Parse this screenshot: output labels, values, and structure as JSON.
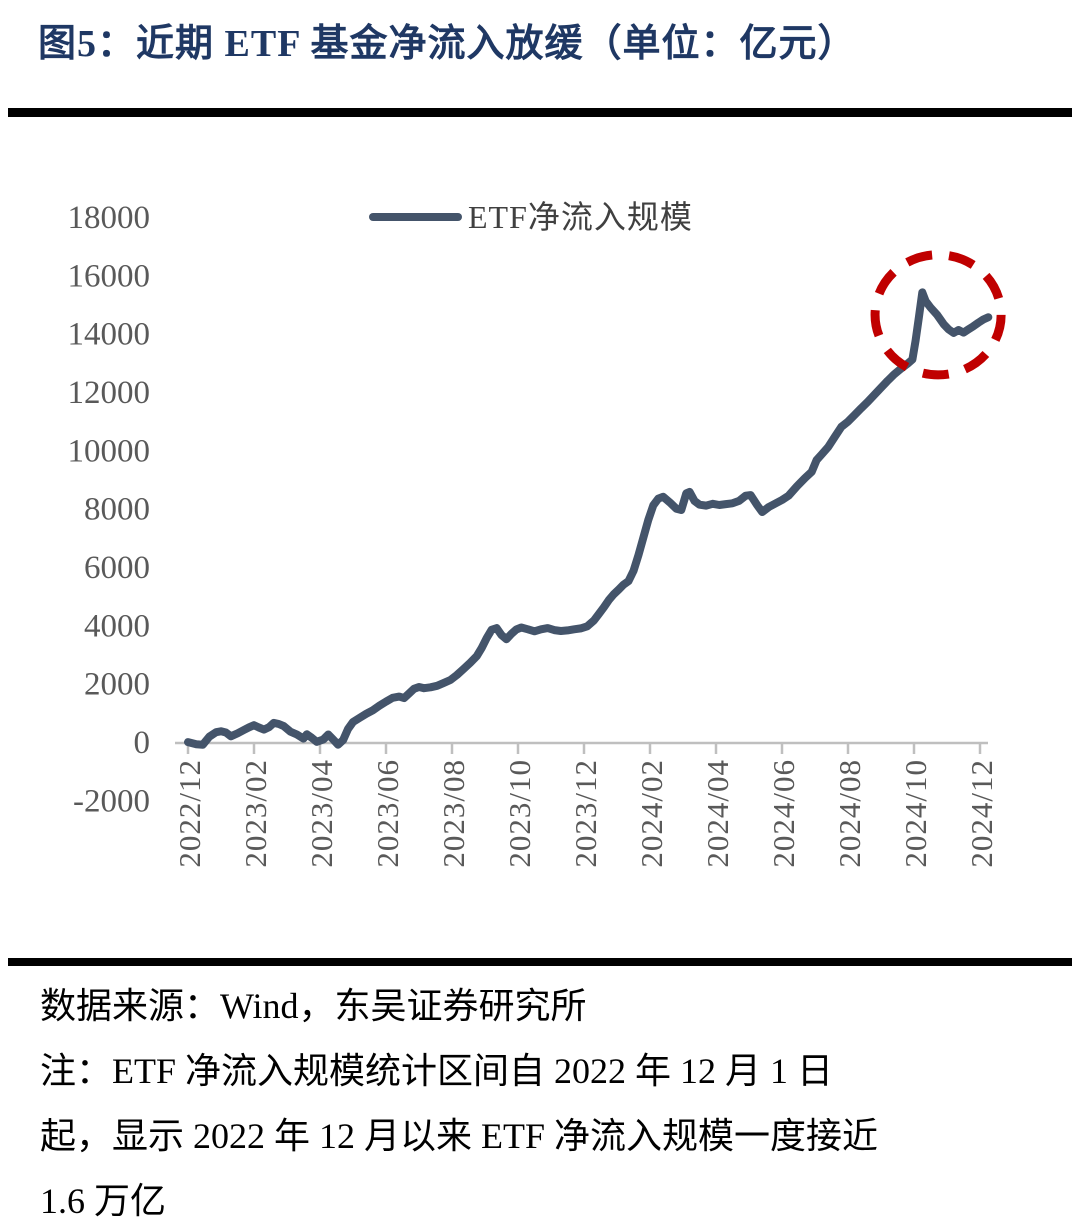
{
  "figure": {
    "title": "图5：近期 ETF 基金净流入放缓（单位：亿元）",
    "notes": [
      "数据来源：Wind，东吴证券研究所",
      "注：ETF 净流入规模统计区间自 2022 年 12 月 1 日",
      "起，显示 2022 年 12 月以来 ETF 净流入规模一度接近",
      "1.6 万亿"
    ]
  },
  "colors": {
    "title": "#1F3864",
    "line": "#44546A",
    "annotation_red": "#C00000",
    "axis_text": "#595959",
    "legend_text": "#404040",
    "axis_line": "#BFBFBF",
    "rule": "#000000",
    "note_text": "#000000"
  },
  "chart_data": {
    "type": "line",
    "title": "图5：近期 ETF 基金净流入放缓",
    "unit": "亿元",
    "grid": false,
    "legend_position": "top-center",
    "x_tick_labels": [
      "2022/12",
      "2023/02",
      "2023/04",
      "2023/06",
      "2023/08",
      "2023/10",
      "2023/12",
      "2024/02",
      "2024/04",
      "2024/06",
      "2024/08",
      "2024/10",
      "2024/12"
    ],
    "x_months_per_tick": 2,
    "xlim_months": [
      0,
      24.3
    ],
    "ylim": [
      -2000,
      18000
    ],
    "y_ticks": [
      -2000,
      0,
      2000,
      4000,
      6000,
      8000,
      10000,
      12000,
      14000,
      16000,
      18000
    ],
    "series": [
      {
        "name": "ETF净流入规模",
        "color": "#44546A",
        "x_unit": "months_since_2022_12",
        "points": [
          [
            0,
            30
          ],
          [
            0.25,
            -40
          ],
          [
            0.45,
            -60
          ],
          [
            0.65,
            220
          ],
          [
            0.85,
            370
          ],
          [
            1.0,
            400
          ],
          [
            1.15,
            360
          ],
          [
            1.3,
            230
          ],
          [
            1.5,
            330
          ],
          [
            1.7,
            450
          ],
          [
            1.85,
            540
          ],
          [
            2.0,
            610
          ],
          [
            2.15,
            530
          ],
          [
            2.3,
            460
          ],
          [
            2.45,
            540
          ],
          [
            2.6,
            690
          ],
          [
            2.75,
            650
          ],
          [
            2.9,
            580
          ],
          [
            3.1,
            390
          ],
          [
            3.3,
            290
          ],
          [
            3.5,
            150
          ],
          [
            3.6,
            300
          ],
          [
            3.75,
            180
          ],
          [
            3.9,
            40
          ],
          [
            4.1,
            120
          ],
          [
            4.25,
            290
          ],
          [
            4.4,
            120
          ],
          [
            4.55,
            -60
          ],
          [
            4.7,
            100
          ],
          [
            4.85,
            480
          ],
          [
            5.0,
            720
          ],
          [
            5.2,
            860
          ],
          [
            5.4,
            1000
          ],
          [
            5.6,
            1120
          ],
          [
            5.8,
            1280
          ],
          [
            6.0,
            1420
          ],
          [
            6.2,
            1550
          ],
          [
            6.4,
            1590
          ],
          [
            6.55,
            1540
          ],
          [
            6.7,
            1700
          ],
          [
            6.85,
            1860
          ],
          [
            7.0,
            1920
          ],
          [
            7.15,
            1880
          ],
          [
            7.35,
            1910
          ],
          [
            7.55,
            1960
          ],
          [
            7.75,
            2060
          ],
          [
            7.95,
            2160
          ],
          [
            8.15,
            2330
          ],
          [
            8.35,
            2540
          ],
          [
            8.55,
            2750
          ],
          [
            8.75,
            2980
          ],
          [
            8.9,
            3260
          ],
          [
            9.05,
            3600
          ],
          [
            9.2,
            3880
          ],
          [
            9.35,
            3940
          ],
          [
            9.5,
            3700
          ],
          [
            9.65,
            3560
          ],
          [
            9.8,
            3740
          ],
          [
            9.95,
            3890
          ],
          [
            10.1,
            3960
          ],
          [
            10.3,
            3900
          ],
          [
            10.5,
            3830
          ],
          [
            10.7,
            3900
          ],
          [
            10.9,
            3940
          ],
          [
            11.1,
            3870
          ],
          [
            11.3,
            3840
          ],
          [
            11.5,
            3860
          ],
          [
            11.7,
            3900
          ],
          [
            11.9,
            3930
          ],
          [
            12.1,
            4000
          ],
          [
            12.3,
            4200
          ],
          [
            12.45,
            4420
          ],
          [
            12.6,
            4650
          ],
          [
            12.75,
            4900
          ],
          [
            12.9,
            5100
          ],
          [
            13.05,
            5260
          ],
          [
            13.2,
            5430
          ],
          [
            13.35,
            5550
          ],
          [
            13.5,
            5900
          ],
          [
            13.65,
            6450
          ],
          [
            13.8,
            7050
          ],
          [
            13.95,
            7650
          ],
          [
            14.1,
            8150
          ],
          [
            14.25,
            8380
          ],
          [
            14.4,
            8440
          ],
          [
            14.6,
            8250
          ],
          [
            14.8,
            8030
          ],
          [
            14.95,
            7990
          ],
          [
            15.1,
            8560
          ],
          [
            15.2,
            8610
          ],
          [
            15.35,
            8300
          ],
          [
            15.5,
            8170
          ],
          [
            15.7,
            8140
          ],
          [
            15.9,
            8200
          ],
          [
            16.1,
            8160
          ],
          [
            16.3,
            8190
          ],
          [
            16.5,
            8220
          ],
          [
            16.7,
            8300
          ],
          [
            16.9,
            8480
          ],
          [
            17.05,
            8500
          ],
          [
            17.25,
            8150
          ],
          [
            17.4,
            7920
          ],
          [
            17.6,
            8090
          ],
          [
            17.8,
            8210
          ],
          [
            18.0,
            8330
          ],
          [
            18.2,
            8480
          ],
          [
            18.45,
            8800
          ],
          [
            18.7,
            9090
          ],
          [
            18.9,
            9300
          ],
          [
            19.05,
            9700
          ],
          [
            19.2,
            9890
          ],
          [
            19.4,
            10150
          ],
          [
            19.6,
            10500
          ],
          [
            19.8,
            10840
          ],
          [
            20.0,
            11020
          ],
          [
            20.2,
            11250
          ],
          [
            20.4,
            11480
          ],
          [
            20.6,
            11700
          ],
          [
            20.8,
            11940
          ],
          [
            21.0,
            12180
          ],
          [
            21.2,
            12420
          ],
          [
            21.4,
            12640
          ],
          [
            21.6,
            12830
          ],
          [
            21.8,
            13000
          ],
          [
            21.95,
            13150
          ],
          [
            22.05,
            13800
          ],
          [
            22.15,
            14600
          ],
          [
            22.25,
            15450
          ],
          [
            22.35,
            15150
          ],
          [
            22.5,
            14930
          ],
          [
            22.7,
            14680
          ],
          [
            22.9,
            14360
          ],
          [
            23.05,
            14180
          ],
          [
            23.2,
            14060
          ],
          [
            23.35,
            14160
          ],
          [
            23.5,
            14070
          ],
          [
            23.65,
            14180
          ],
          [
            23.8,
            14290
          ],
          [
            23.95,
            14410
          ],
          [
            24.1,
            14520
          ],
          [
            24.25,
            14600
          ]
        ]
      }
    ],
    "annotation": {
      "type": "dashed-ellipse",
      "color": "#C00000",
      "center_month": 22.73,
      "center_value": 14680,
      "radius_months": 1.91,
      "radius_value": 2060
    }
  }
}
